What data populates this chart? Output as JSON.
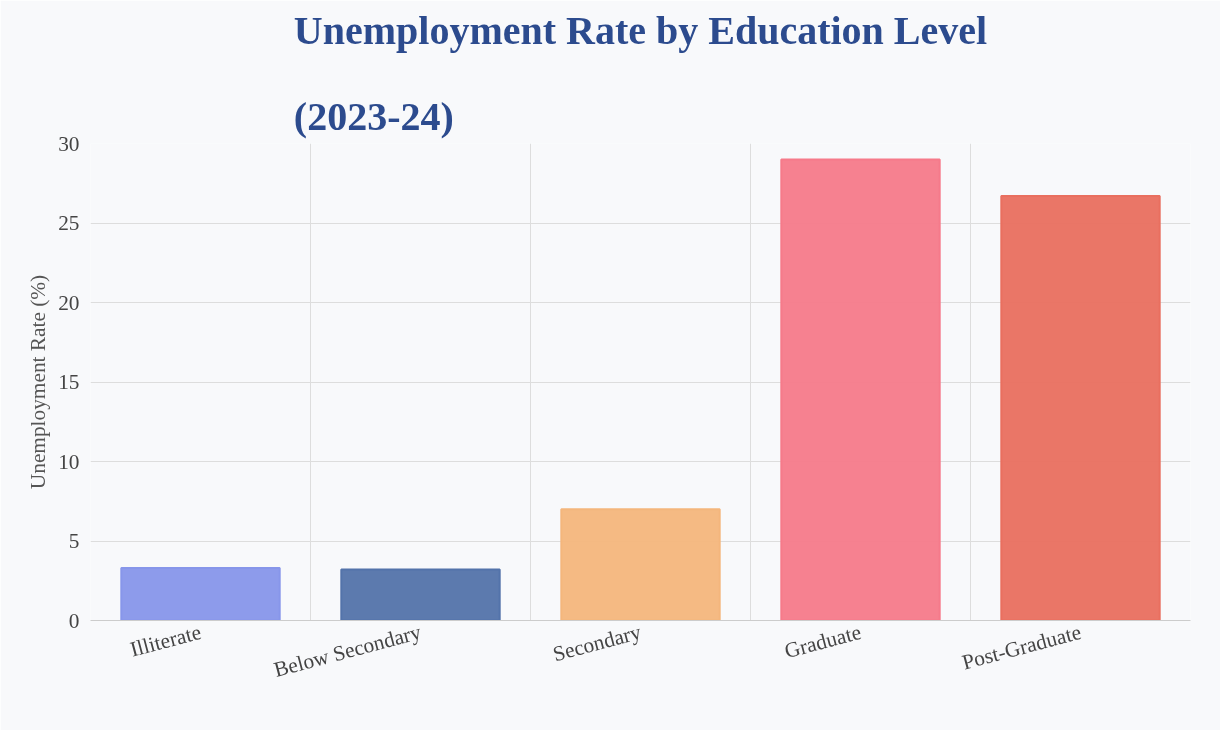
{
  "chart_data": {
    "type": "bar",
    "title": "Unemployment Rate by Education Level\n(2023-24)",
    "ylabel": "Unemployment Rate (%)",
    "categories": [
      "Illiterate",
      "Below Secondary",
      "Secondary",
      "Graduate",
      "Post-Graduate"
    ],
    "values": [
      3.3,
      3.2,
      7.0,
      29.0,
      26.7
    ],
    "colors": [
      "#8796ea",
      "#5373aa",
      "#f4b67c",
      "#f67a8a",
      "#e96f5f"
    ],
    "ylim": [
      0,
      30
    ],
    "yticks": [
      0,
      5,
      10,
      15,
      20,
      25,
      30
    ],
    "grid": true
  }
}
